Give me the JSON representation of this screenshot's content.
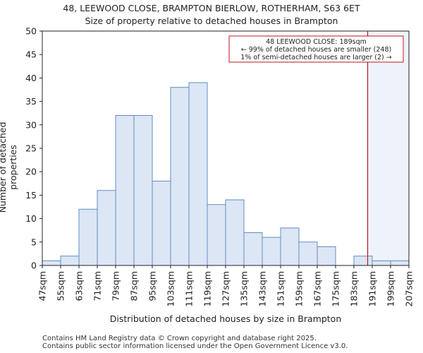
{
  "chart_data": {
    "type": "bar",
    "title": "48, LEEWOOD CLOSE, BRAMPTON BIERLOW, ROTHERHAM, S63 6ET",
    "subtitle": "Size of property relative to detached houses in Brampton",
    "xlabel": "Distribution of detached houses by size in Brampton",
    "ylabel": "Number of detached properties",
    "bin_edges": [
      47,
      55,
      63,
      71,
      79,
      87,
      95,
      103,
      111,
      119,
      127,
      135,
      143,
      151,
      159,
      167,
      175,
      183,
      191,
      199,
      207
    ],
    "x_tick_labels": [
      "47sqm",
      "55sqm",
      "63sqm",
      "71sqm",
      "79sqm",
      "87sqm",
      "95sqm",
      "103sqm",
      "111sqm",
      "119sqm",
      "127sqm",
      "135sqm",
      "143sqm",
      "151sqm",
      "159sqm",
      "167sqm",
      "175sqm",
      "183sqm",
      "191sqm",
      "199sqm",
      "207sqm"
    ],
    "values": [
      1,
      2,
      12,
      16,
      32,
      32,
      18,
      38,
      39,
      13,
      14,
      7,
      6,
      8,
      5,
      4,
      0,
      2,
      1,
      1
    ],
    "ylim": [
      0,
      50
    ],
    "y_ticks": [
      0,
      5,
      10,
      15,
      20,
      25,
      30,
      35,
      40,
      45,
      50
    ],
    "marker_value": 189,
    "annotation": {
      "line1": "48 LEEWOOD CLOSE: 189sqm",
      "line2": "← 99% of detached houses are smaller (248)",
      "line3": "1% of semi-detached houses are larger (2) →"
    },
    "colors": {
      "bar_fill": "#dce6f4",
      "bar_stroke": "#5f8ec4",
      "marker": "#c0141b",
      "shade": "#eef3fb"
    }
  },
  "footer": {
    "line1": "Contains HM Land Registry data © Crown copyright and database right 2025.",
    "line2": "Contains public sector information licensed under the Open Government Licence v3.0."
  }
}
